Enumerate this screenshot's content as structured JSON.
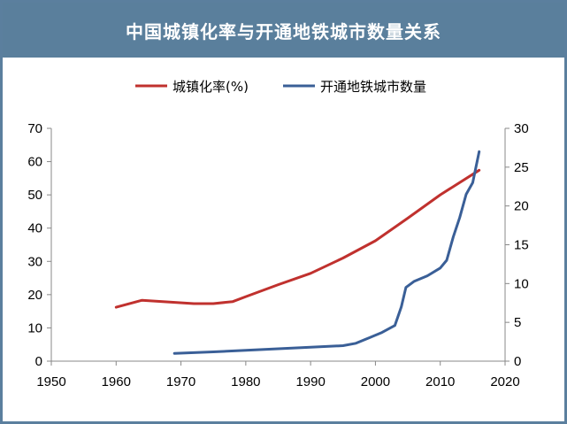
{
  "title": "中国城镇化率与开通地铁城市数量关系",
  "colors": {
    "header": "#5a7f9c",
    "urbanization": "#c0312e",
    "metro": "#3a5f97"
  },
  "chart_data": {
    "type": "line",
    "title": "中国城镇化率与开通地铁城市数量关系",
    "xlim": [
      1950,
      2020
    ],
    "ylim_left": [
      0,
      70
    ],
    "ylim_right": [
      0,
      30
    ],
    "x_ticks": [
      "1950",
      "1960",
      "1970",
      "1980",
      "1990",
      "2000",
      "2010",
      "2020"
    ],
    "y_left_ticks": [
      "0",
      "10",
      "20",
      "30",
      "40",
      "50",
      "60",
      "70"
    ],
    "y_right_ticks": [
      "0",
      "5",
      "10",
      "15",
      "20",
      "25",
      "30"
    ],
    "legend_position": "top-center",
    "grid": false,
    "series": [
      {
        "name": "城镇化率(%)",
        "axis": "left",
        "color": "#c0312e",
        "x": [
          1960,
          1964,
          1968,
          1972,
          1975,
          1978,
          1980,
          1985,
          1990,
          1995,
          2000,
          2005,
          2010,
          2016
        ],
        "values": [
          16.2,
          18.3,
          17.8,
          17.3,
          17.3,
          17.9,
          19.4,
          23.0,
          26.4,
          31.0,
          36.2,
          43.0,
          50.0,
          57.4
        ]
      },
      {
        "name": "开通地铁城市数量",
        "axis": "right",
        "color": "#3a5f97",
        "x": [
          1969,
          1975,
          1980,
          1985,
          1990,
          1995,
          1997,
          1999,
          2001,
          2003,
          2004,
          2004.7,
          2006,
          2008,
          2010,
          2011,
          2012,
          2013,
          2014,
          2015,
          2016
        ],
        "values": [
          1,
          1.2,
          1.4,
          1.6,
          1.8,
          2.0,
          2.3,
          3.0,
          3.7,
          4.6,
          7.0,
          9.5,
          10.3,
          11.0,
          12.0,
          13.0,
          16.0,
          18.5,
          21.5,
          23.0,
          27.0
        ]
      }
    ]
  }
}
